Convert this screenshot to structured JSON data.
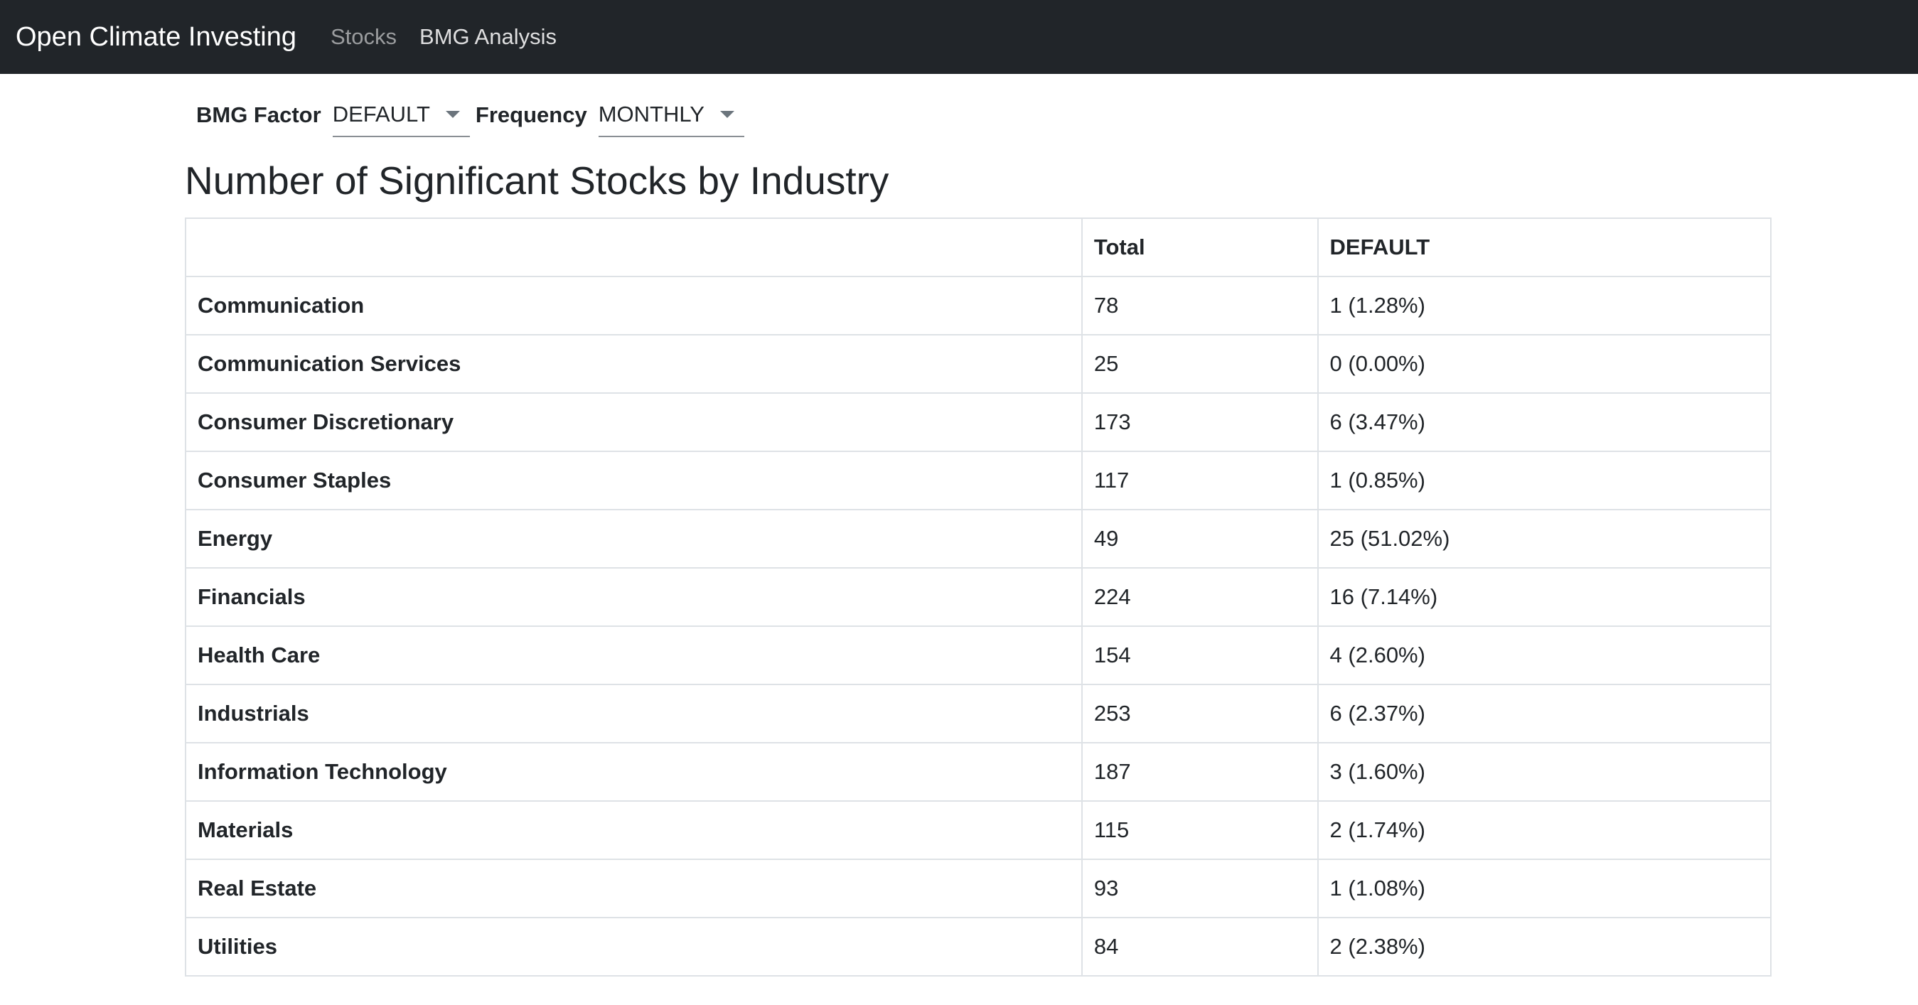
{
  "navbar": {
    "brand": "Open Climate Investing",
    "links": [
      {
        "label": "Stocks"
      },
      {
        "label": "BMG Analysis"
      }
    ]
  },
  "filters": {
    "bmg_factor_label": "BMG Factor",
    "bmg_factor_value": "DEFAULT",
    "frequency_label": "Frequency",
    "frequency_value": "MONTHLY"
  },
  "page_title": "Number of Significant Stocks by Industry",
  "table": {
    "headers": [
      "",
      "Total",
      "DEFAULT"
    ],
    "rows": [
      {
        "industry": "Communication",
        "total": "78",
        "default": "1 (1.28%)"
      },
      {
        "industry": "Communication Services",
        "total": "25",
        "default": "0 (0.00%)"
      },
      {
        "industry": "Consumer Discretionary",
        "total": "173",
        "default": "6 (3.47%)"
      },
      {
        "industry": "Consumer Staples",
        "total": "117",
        "default": "1 (0.85%)"
      },
      {
        "industry": "Energy",
        "total": "49",
        "default": "25 (51.02%)"
      },
      {
        "industry": "Financials",
        "total": "224",
        "default": "16 (7.14%)"
      },
      {
        "industry": "Health Care",
        "total": "154",
        "default": "4 (2.60%)"
      },
      {
        "industry": "Industrials",
        "total": "253",
        "default": "6 (2.37%)"
      },
      {
        "industry": "Information Technology",
        "total": "187",
        "default": "3 (1.60%)"
      },
      {
        "industry": "Materials",
        "total": "115",
        "default": "2 (1.74%)"
      },
      {
        "industry": "Real Estate",
        "total": "93",
        "default": "1 (1.08%)"
      },
      {
        "industry": "Utilities",
        "total": "84",
        "default": "2 (2.38%)"
      }
    ]
  }
}
